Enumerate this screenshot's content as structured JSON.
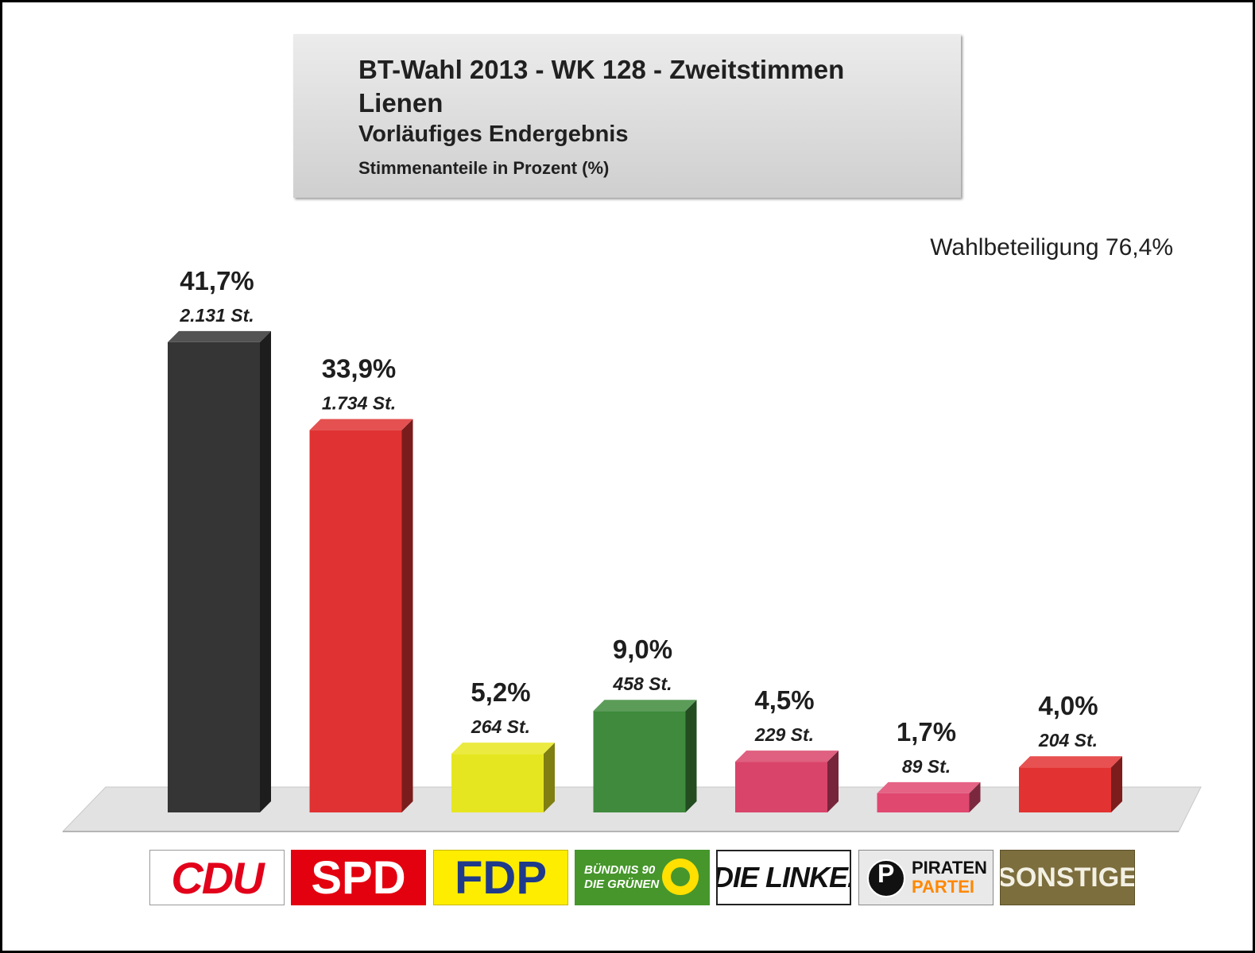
{
  "header": {
    "line1": "BT-Wahl 2013 - WK 128 - Zweitstimmen",
    "line2": "Lienen",
    "line3": "Vorläufiges Endergebnis",
    "line4": "Stimmenanteile in Prozent (%)"
  },
  "turnout": "Wahlbeteiligung 76,4%",
  "chart_data": {
    "type": "bar",
    "title": "BT-Wahl 2013 - WK 128 - Zweitstimmen",
    "ylabel": "Stimmenanteile in Prozent (%)",
    "ylim": [
      0,
      45
    ],
    "categories": [
      "CDU",
      "SPD",
      "FDP",
      "GRÜNE",
      "DIE LINKE",
      "PIRATEN",
      "SONSTIGE"
    ],
    "values": [
      41.7,
      33.9,
      5.2,
      9.0,
      4.5,
      1.7,
      4.0
    ],
    "value_labels": [
      "41,7%",
      "33,9%",
      "5,2%",
      "9,0%",
      "4,5%",
      "1,7%",
      "4,0%"
    ],
    "vote_labels": [
      "2.131 St.",
      "1.734 St.",
      "264 St.",
      "458 St.",
      "229 St.",
      "89 St.",
      "204 St."
    ],
    "colors": [
      "#353535",
      "#e03232",
      "#e6e620",
      "#3f8a3c",
      "#d9446a",
      "#e04870",
      "#e33232"
    ]
  },
  "logos": {
    "cdu": "CDU",
    "spd": "SPD",
    "fdp": "FDP",
    "gruene_1": "BÜNDNIS 90",
    "gruene_2": "DIE GRÜNEN",
    "linke": "DIE LINKE.",
    "piraten_1": "PIRATEN",
    "piraten_2": "PARTEI",
    "sonstige": "SONSTIGE"
  }
}
